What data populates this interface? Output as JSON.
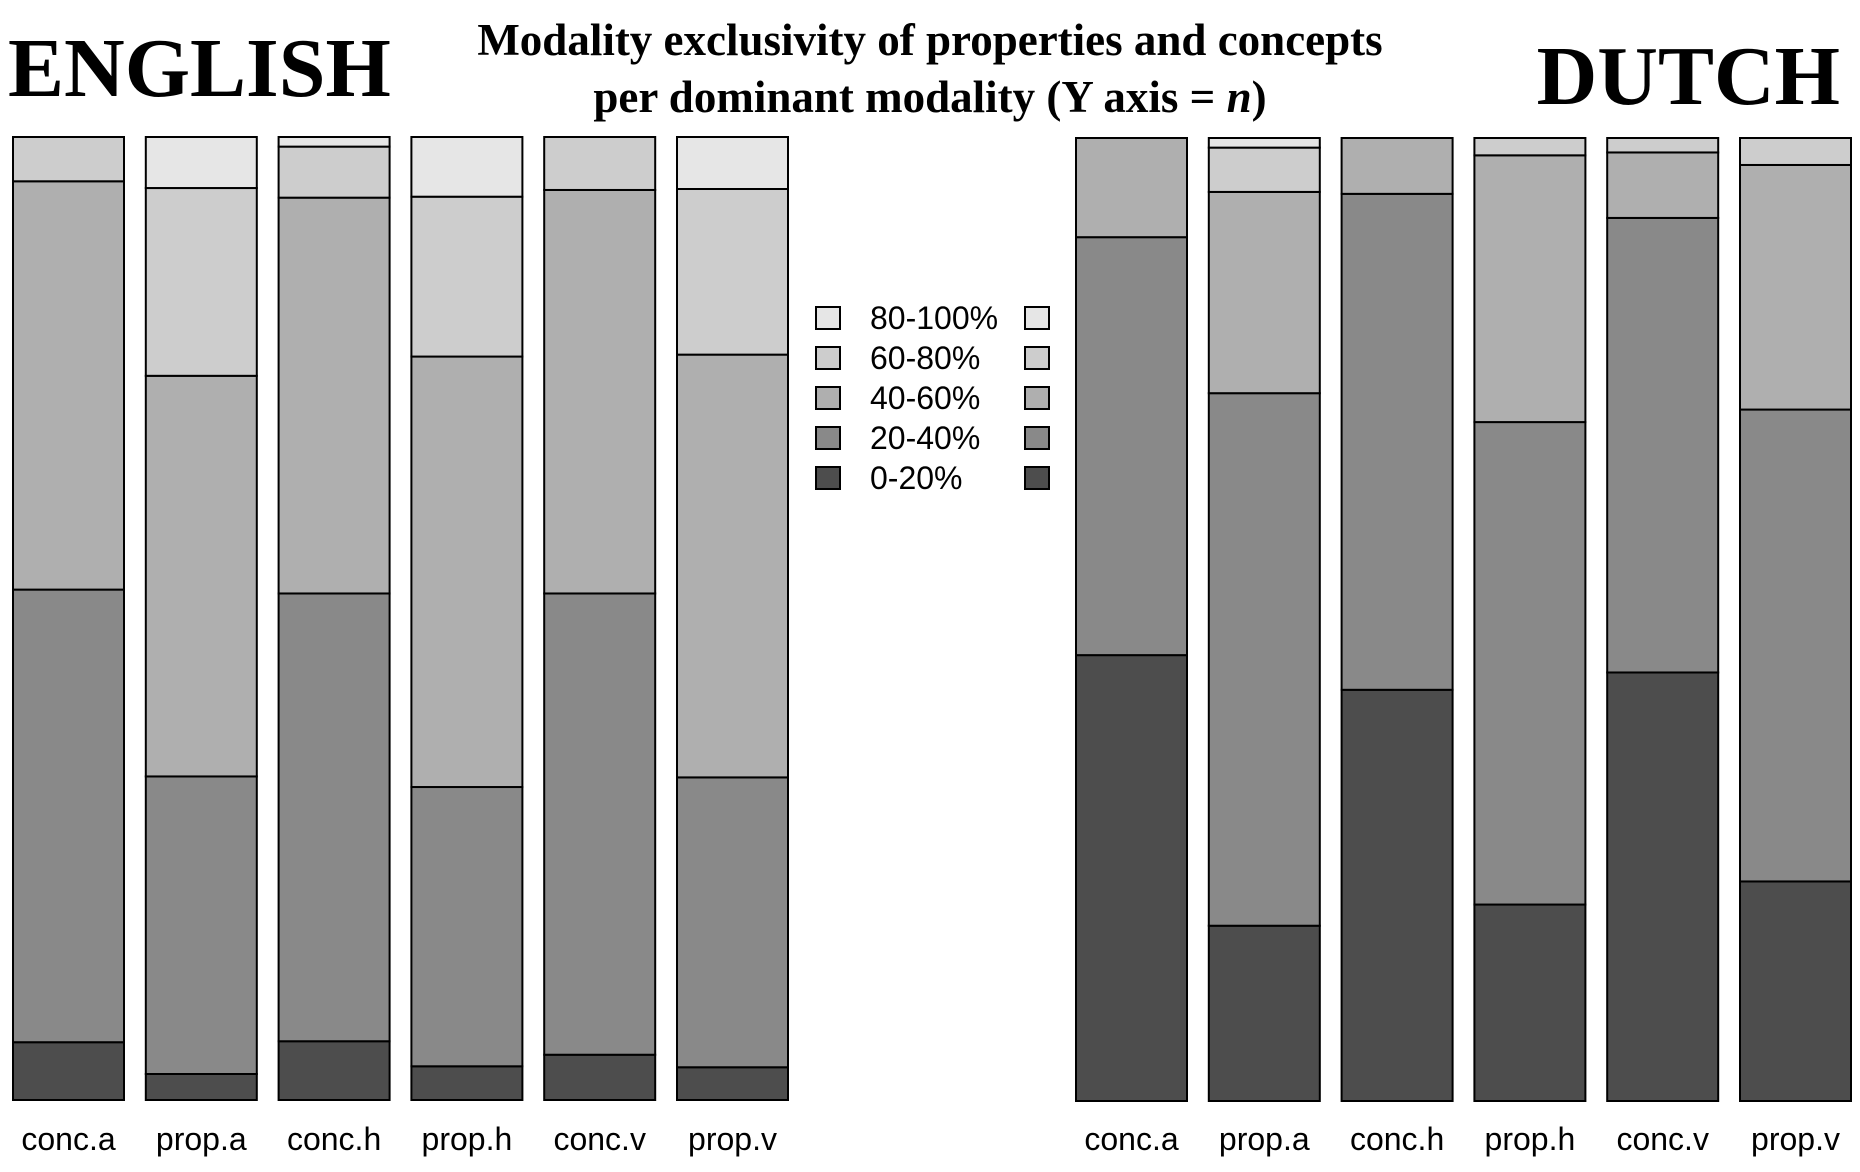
{
  "chart_data": {
    "type": "bar",
    "stacked": true,
    "normalized": true,
    "title": {
      "line1": "Modality exclusivity of properties and concepts",
      "line2_prefix": "per dominant modality (Y axis = ",
      "line2_italic": "n",
      "line2_suffix": ")"
    },
    "legend": {
      "placement": "center",
      "entries": [
        "80-100%",
        "60-80%",
        "40-60%",
        "20-40%",
        "0-20%"
      ]
    },
    "series": [
      {
        "name": "0-20%",
        "color": "#4d4d4d"
      },
      {
        "name": "20-40%",
        "color": "#898989"
      },
      {
        "name": "40-60%",
        "color": "#afafaf"
      },
      {
        "name": "60-80%",
        "color": "#cdcdcd"
      },
      {
        "name": "80-100%",
        "color": "#e6e6e6"
      }
    ],
    "panels": [
      {
        "title": "ENGLISH",
        "categories": [
          "conc.a",
          "prop.a",
          "conc.h",
          "prop.h",
          "conc.v",
          "prop.v"
        ],
        "segments": [
          [
            0.06,
            0.47,
            0.424,
            0.046,
            0.0
          ],
          [
            0.027,
            0.309,
            0.416,
            0.195,
            0.053
          ],
          [
            0.061,
            0.465,
            0.411,
            0.053,
            0.01
          ],
          [
            0.035,
            0.29,
            0.447,
            0.166,
            0.062
          ],
          [
            0.047,
            0.479,
            0.419,
            0.055,
            0.0
          ],
          [
            0.034,
            0.301,
            0.439,
            0.172,
            0.054
          ]
        ]
      },
      {
        "title": "DUTCH",
        "categories": [
          "conc.a",
          "prop.a",
          "conc.h",
          "prop.h",
          "conc.v",
          "prop.v"
        ],
        "segments": [
          [
            0.463,
            0.434,
            0.103,
            0.0,
            0.0
          ],
          [
            0.182,
            0.553,
            0.209,
            0.046,
            0.01
          ],
          [
            0.427,
            0.515,
            0.058,
            0.0,
            0.0
          ],
          [
            0.204,
            0.501,
            0.277,
            0.018,
            0.0
          ],
          [
            0.445,
            0.472,
            0.068,
            0.015,
            0.0
          ],
          [
            0.228,
            0.49,
            0.254,
            0.028,
            0.0
          ]
        ]
      }
    ]
  }
}
